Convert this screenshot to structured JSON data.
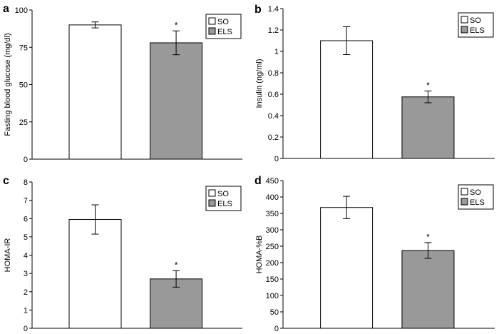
{
  "chart_data": [
    {
      "type": "bar",
      "panel": "a",
      "categories": [
        "SO",
        "ELS"
      ],
      "series": [
        {
          "name": "SO",
          "values": [
            90.0,
            null
          ],
          "errors": [
            2.0,
            null
          ],
          "color": "#ffffff"
        },
        {
          "name": "ELS",
          "values": [
            null,
            78.0
          ],
          "errors": [
            null,
            8.0
          ],
          "color": "#999999"
        }
      ],
      "significance": [
        "",
        "*"
      ],
      "ylabel": "Fasting blood glucose (mg/dl)",
      "ylim": [
        0,
        100
      ],
      "yticks": [
        "0",
        "25",
        "50",
        "75",
        "100"
      ],
      "legend": "top-right",
      "grid": false
    },
    {
      "type": "bar",
      "panel": "b",
      "categories": [
        "SO",
        "ELS"
      ],
      "series": [
        {
          "name": "SO",
          "values": [
            1.1,
            null
          ],
          "errors": [
            0.13,
            null
          ],
          "color": "#ffffff"
        },
        {
          "name": "ELS",
          "values": [
            null,
            0.575
          ],
          "errors": [
            null,
            0.055
          ],
          "color": "#999999"
        }
      ],
      "significance": [
        "",
        "*"
      ],
      "ylabel": "Insulin (ng/ml)",
      "ylim": [
        0,
        1.4
      ],
      "yticks": [
        "0",
        "0.2",
        "0.4",
        "0.6",
        "0.8",
        "1",
        "1.2",
        "1.4"
      ],
      "legend": "top-right",
      "grid": false
    },
    {
      "type": "bar",
      "panel": "c",
      "categories": [
        "SO",
        "ELS"
      ],
      "series": [
        {
          "name": "SO",
          "values": [
            5.95,
            null
          ],
          "errors": [
            0.8,
            null
          ],
          "color": "#ffffff"
        },
        {
          "name": "ELS",
          "values": [
            null,
            2.7
          ],
          "errors": [
            null,
            0.45
          ],
          "color": "#999999"
        }
      ],
      "significance": [
        "",
        "*"
      ],
      "ylabel": "HOMA-IR",
      "ylim": [
        0,
        8
      ],
      "yticks": [
        "0",
        "1",
        "2",
        "3",
        "4",
        "5",
        "6",
        "7",
        "8"
      ],
      "legend": "top-right",
      "grid": false
    },
    {
      "type": "bar",
      "panel": "d",
      "categories": [
        "SO",
        "ELS"
      ],
      "series": [
        {
          "name": "SO",
          "values": [
            368,
            null
          ],
          "errors": [
            34,
            null
          ],
          "color": "#ffffff"
        },
        {
          "name": "ELS",
          "values": [
            null,
            237
          ],
          "errors": [
            null,
            24
          ],
          "color": "#999999"
        }
      ],
      "significance": [
        "",
        "*"
      ],
      "ylabel": "HOMA-%B",
      "ylim": [
        0,
        450
      ],
      "yticks": [
        "0",
        "50",
        "100",
        "150",
        "200",
        "250",
        "300",
        "350",
        "400",
        "450"
      ],
      "legend": "top-right",
      "grid": false
    }
  ]
}
